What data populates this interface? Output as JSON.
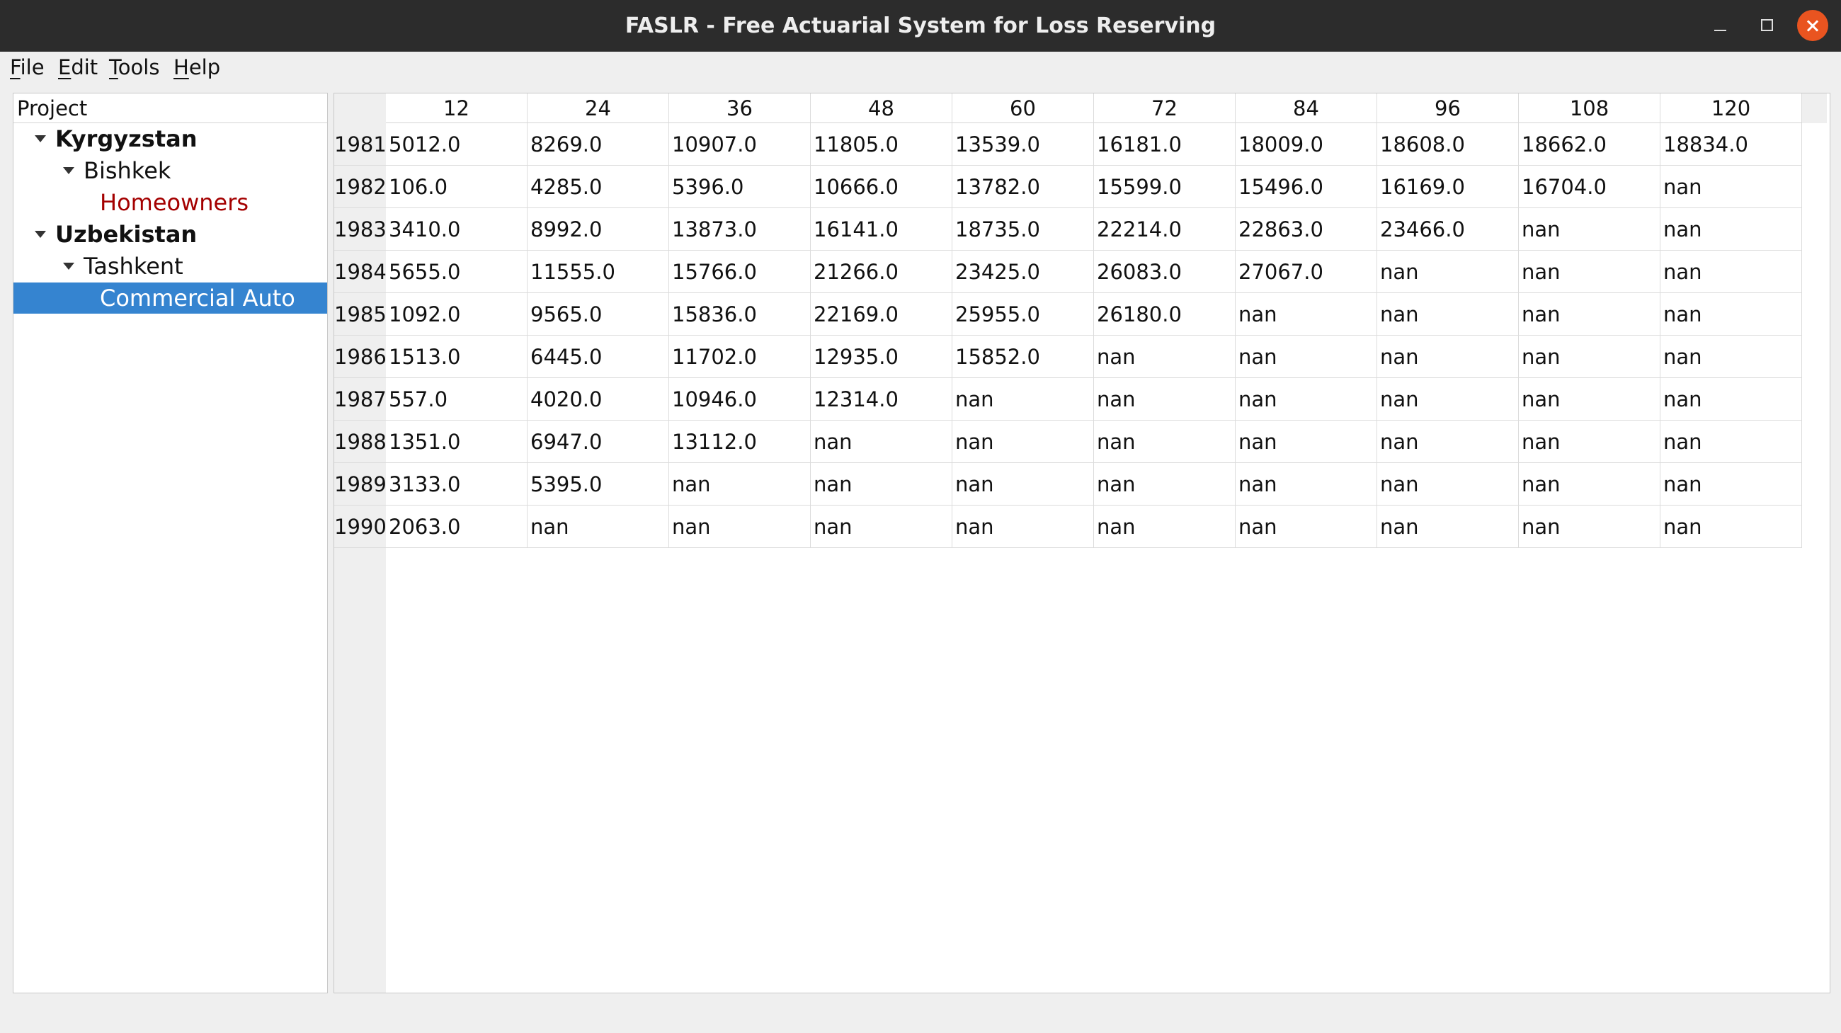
{
  "window": {
    "title": "FASLR - Free Actuarial System for Loss Reserving"
  },
  "menu": {
    "items": [
      "File",
      "Edit",
      "Tools",
      "Help"
    ]
  },
  "tree": {
    "header": "Project",
    "nodes": [
      {
        "label": "Kyrgyzstan",
        "level": 0,
        "expandable": true,
        "bold": true
      },
      {
        "label": "Bishkek",
        "level": 1,
        "expandable": true
      },
      {
        "label": "Homeowners",
        "level": 2,
        "color": "#a40000"
      },
      {
        "label": "Uzbekistan",
        "level": 0,
        "expandable": true,
        "bold": true
      },
      {
        "label": "Tashkent",
        "level": 1,
        "expandable": true
      },
      {
        "label": "Commercial Auto",
        "level": 2,
        "selected": true
      }
    ]
  },
  "table": {
    "columns": [
      "12",
      "24",
      "36",
      "48",
      "60",
      "72",
      "84",
      "96",
      "108",
      "120"
    ],
    "rows": [
      {
        "year": "1981",
        "values": [
          "5012.0",
          "8269.0",
          "10907.0",
          "11805.0",
          "13539.0",
          "16181.0",
          "18009.0",
          "18608.0",
          "18662.0",
          "18834.0"
        ]
      },
      {
        "year": "1982",
        "values": [
          "106.0",
          "4285.0",
          "5396.0",
          "10666.0",
          "13782.0",
          "15599.0",
          "15496.0",
          "16169.0",
          "16704.0",
          "nan"
        ]
      },
      {
        "year": "1983",
        "values": [
          "3410.0",
          "8992.0",
          "13873.0",
          "16141.0",
          "18735.0",
          "22214.0",
          "22863.0",
          "23466.0",
          "nan",
          "nan"
        ]
      },
      {
        "year": "1984",
        "values": [
          "5655.0",
          "11555.0",
          "15766.0",
          "21266.0",
          "23425.0",
          "26083.0",
          "27067.0",
          "nan",
          "nan",
          "nan"
        ]
      },
      {
        "year": "1985",
        "values": [
          "1092.0",
          "9565.0",
          "15836.0",
          "22169.0",
          "25955.0",
          "26180.0",
          "nan",
          "nan",
          "nan",
          "nan"
        ]
      },
      {
        "year": "1986",
        "values": [
          "1513.0",
          "6445.0",
          "11702.0",
          "12935.0",
          "15852.0",
          "nan",
          "nan",
          "nan",
          "nan",
          "nan"
        ]
      },
      {
        "year": "1987",
        "values": [
          "557.0",
          "4020.0",
          "10946.0",
          "12314.0",
          "nan",
          "nan",
          "nan",
          "nan",
          "nan",
          "nan"
        ]
      },
      {
        "year": "1988",
        "values": [
          "1351.0",
          "6947.0",
          "13112.0",
          "nan",
          "nan",
          "nan",
          "nan",
          "nan",
          "nan",
          "nan"
        ]
      },
      {
        "year": "1989",
        "values": [
          "3133.0",
          "5395.0",
          "nan",
          "nan",
          "nan",
          "nan",
          "nan",
          "nan",
          "nan",
          "nan"
        ]
      },
      {
        "year": "1990",
        "values": [
          "2063.0",
          "nan",
          "nan",
          "nan",
          "nan",
          "nan",
          "nan",
          "nan",
          "nan",
          "nan"
        ]
      }
    ]
  }
}
